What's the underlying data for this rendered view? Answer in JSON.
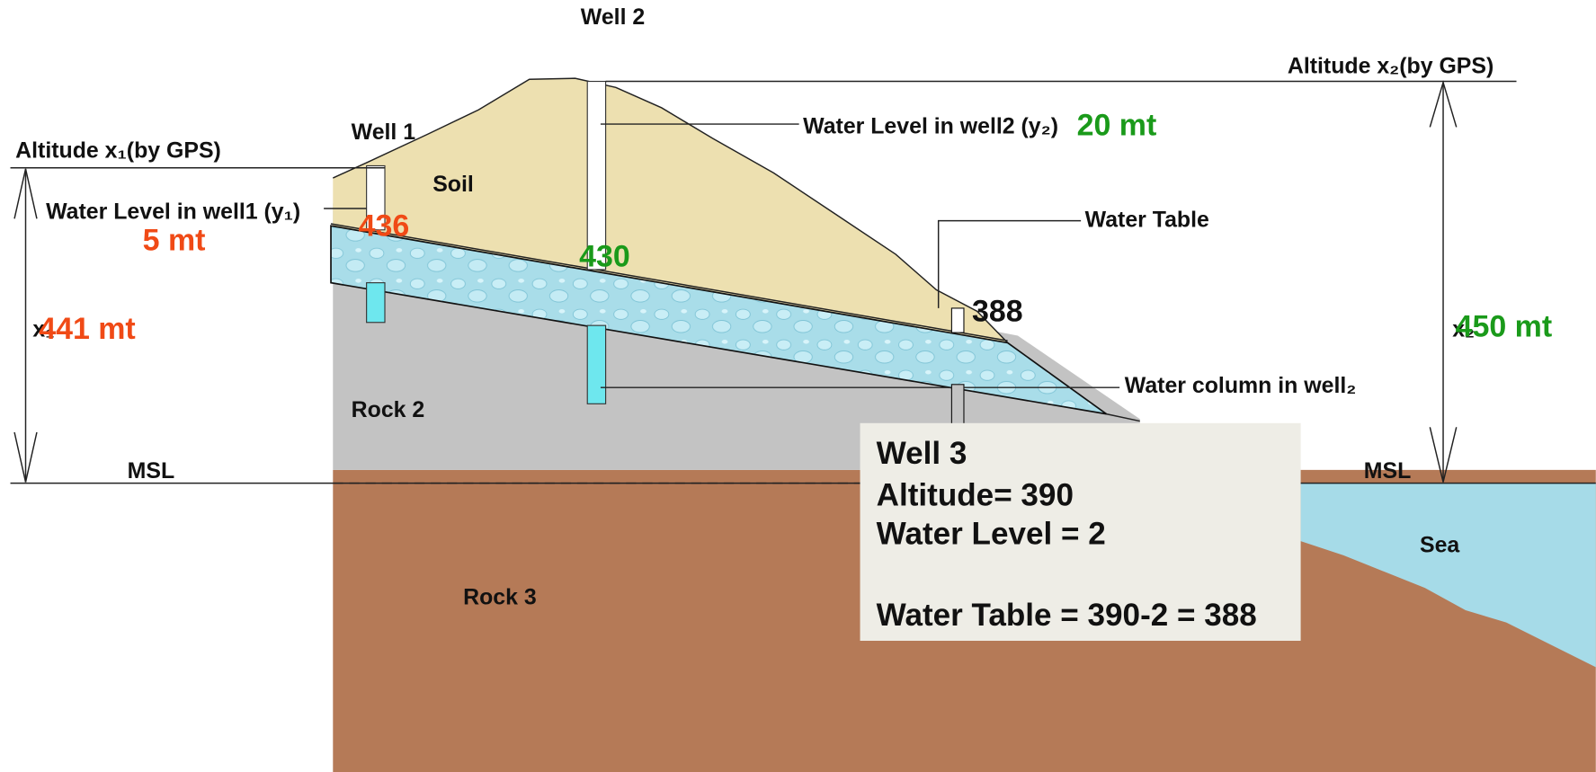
{
  "wells": {
    "well_1": "Well 1",
    "well_2": "Well 2"
  },
  "altitude_labels": {
    "x1": "Altitude  x₁(by GPS)",
    "x2": "Altitude  x₂(by GPS)"
  },
  "water_level_labels": {
    "well_1": "Water Level in well1 (y₁)",
    "well_2": "Water Level in well2 (y₂)"
  },
  "water_level_values": {
    "well_1": "5 mt",
    "well_2": "20 mt"
  },
  "water_table_values": {
    "well_1": "436",
    "well_2": "430",
    "well_3": "388"
  },
  "altitude_values": {
    "x1_symbol": "x₁",
    "x1": "441 mt",
    "x2_symbol": "x₂",
    "x2": "450 mt"
  },
  "layers": {
    "soil": "Soil",
    "rock_2": "Rock 2",
    "rock_3": "Rock 3",
    "sea": "Sea"
  },
  "annotations": {
    "water_table": "Water Table",
    "water_column": "Water column in well₂",
    "msl_left": "MSL",
    "msl_right": "MSL"
  },
  "well_3_box": {
    "lines": [
      "Well 3",
      "Altitude= 390",
      "Water Level = 2",
      "Water Table = 390-2 = 388"
    ]
  }
}
